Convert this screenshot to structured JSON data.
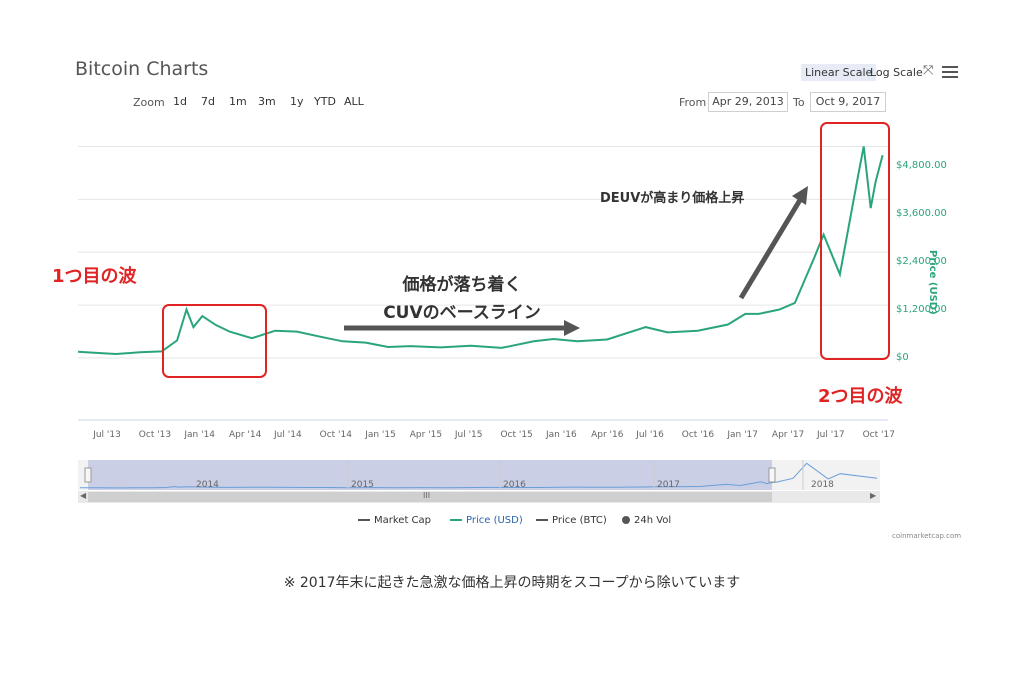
{
  "header": {
    "title": "Bitcoin Charts",
    "zoom_label": "Zoom",
    "zoom_buttons": [
      "1d",
      "7d",
      "1m",
      "3m",
      "1y",
      "YTD",
      "ALL"
    ],
    "linear_scale": "Linear Scale",
    "log_scale": "Log Scale",
    "from_label": "From",
    "from_value": "Apr 29, 2013",
    "to_label": "To",
    "to_value": "Oct 9, 2017"
  },
  "icons": {
    "expand": "expand-icon",
    "menu": "hamburger-menu-icon"
  },
  "colors": {
    "price_line": "#2aa57a",
    "annotation_red": "#e02424",
    "arrow": "#555555",
    "nav_line": "#6a9fd8"
  },
  "annotations": {
    "first_wave": "1つ目の波",
    "baseline_line1": "価格が落ち着く",
    "baseline_line2": "CUVのベースライン",
    "deuv": "DEUVが高まり価格上昇",
    "second_wave": "2つ目の波"
  },
  "navigator": {
    "years": [
      "2014",
      "2015",
      "2016",
      "2017",
      "2018"
    ],
    "scroll_grip": "III"
  },
  "legend": [
    "Market Cap",
    "Price (USD)",
    "Price (BTC)",
    "24h Vol"
  ],
  "credit": "coinmarketcap.com",
  "footnote": "※ 2017年末に起きた急激な価格上昇の時期をスコープから除いています",
  "chart_data": {
    "type": "line",
    "ylabel": "Price (USD)",
    "ylim": [
      0,
      5400
    ],
    "y_ticks": [
      "$0",
      "$1,200.00",
      "$2,400.00",
      "$3,600.00",
      "$4,800.00"
    ],
    "x_ticks": [
      "Jul '13",
      "Oct '13",
      "Jan '14",
      "Apr '14",
      "Jul '14",
      "Oct '14",
      "Jan '15",
      "Apr '15",
      "Jul '15",
      "Oct '15",
      "Jan '16",
      "Apr '16",
      "Jul '16",
      "Oct '16",
      "Jan '17",
      "Apr '17",
      "Jul '17",
      "Oct '17"
    ],
    "series": [
      {
        "name": "Price (USD)",
        "x": [
          "2013-04-29",
          "2013-06-01",
          "2013-07-15",
          "2013-09-01",
          "2013-10-15",
          "2013-11-15",
          "2013-12-04",
          "2013-12-18",
          "2014-01-05",
          "2014-02-01",
          "2014-03-01",
          "2014-04-15",
          "2014-06-01",
          "2014-07-15",
          "2014-09-01",
          "2014-10-15",
          "2014-12-01",
          "2015-01-15",
          "2015-03-01",
          "2015-05-01",
          "2015-07-01",
          "2015-09-01",
          "2015-11-05",
          "2015-12-15",
          "2016-02-01",
          "2016-04-01",
          "2016-06-18",
          "2016-08-01",
          "2016-10-01",
          "2016-12-01",
          "2017-01-05",
          "2017-02-01",
          "2017-03-15",
          "2017-04-15",
          "2017-05-25",
          "2017-06-12",
          "2017-07-15",
          "2017-08-20",
          "2017-09-01",
          "2017-09-15",
          "2017-09-25",
          "2017-10-09"
        ],
        "y": [
          140,
          120,
          90,
          130,
          150,
          400,
          1100,
          700,
          950,
          750,
          600,
          450,
          620,
          600,
          480,
          380,
          350,
          250,
          270,
          240,
          280,
          230,
          380,
          430,
          380,
          420,
          700,
          580,
          620,
          760,
          1000,
          1000,
          1100,
          1250,
          2300,
          2800,
          1900,
          4100,
          4800,
          3400,
          4000,
          4600
        ]
      }
    ]
  }
}
